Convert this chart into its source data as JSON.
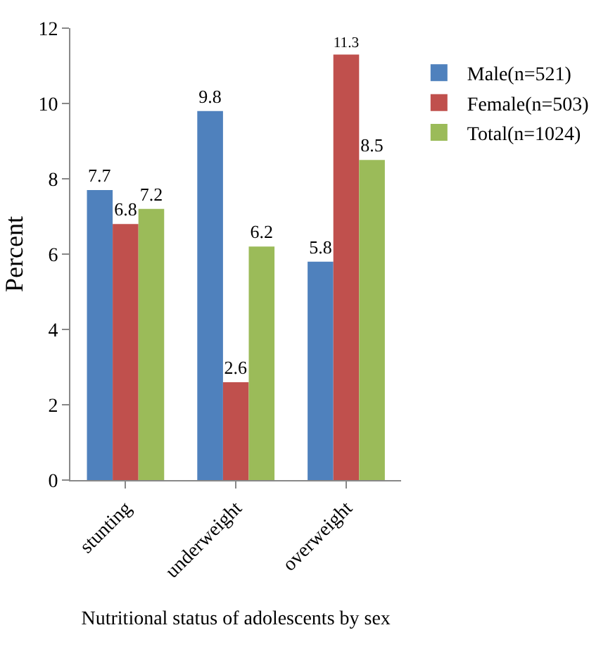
{
  "chart_data": {
    "type": "bar",
    "xlabel": "Nutritional status of adolescents by sex",
    "ylabel": "Percent",
    "categories": [
      "stunting",
      "underweight",
      "overweight"
    ],
    "series": [
      {
        "name": "Male(n=521)",
        "color": "#4f81bd",
        "values": [
          7.7,
          9.8,
          5.8
        ]
      },
      {
        "name": "Female(n=503)",
        "color": "#c0504d",
        "values": [
          6.8,
          2.6,
          11.3
        ]
      },
      {
        "name": "Total(n=1024)",
        "color": "#9bbb59",
        "values": [
          7.2,
          6.2,
          8.5
        ]
      }
    ],
    "ylim": [
      0,
      12
    ],
    "yticks": [
      0,
      2,
      4,
      6,
      8,
      10,
      12
    ],
    "grid": false,
    "legend": "top right",
    "data_labels": true
  }
}
